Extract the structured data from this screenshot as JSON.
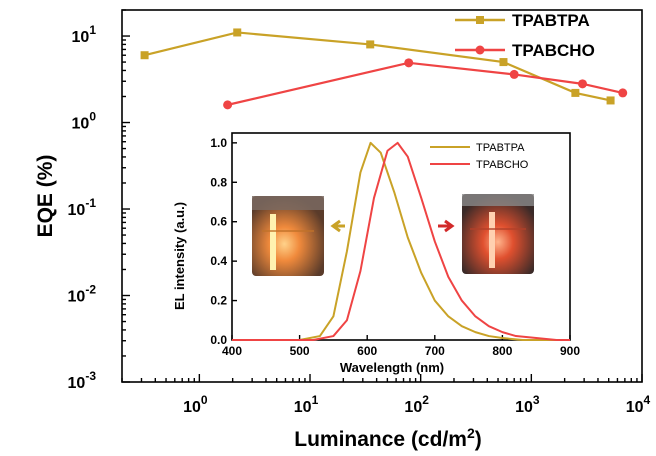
{
  "chart_data": [
    {
      "type": "line",
      "xlabel": "Luminance (cd/m",
      "xlabel_sup": "2",
      "xlabel_end": ")",
      "ylabel": "EQE (%)",
      "xscale": "log",
      "yscale": "log",
      "xlim": [
        0.2,
        10000
      ],
      "ylim": [
        0.001,
        20
      ],
      "xticks": [
        {
          "base": "10",
          "exp": "0",
          "value": 1
        },
        {
          "base": "10",
          "exp": "1",
          "value": 10
        },
        {
          "base": "10",
          "exp": "2",
          "value": 100
        },
        {
          "base": "10",
          "exp": "3",
          "value": 1000
        },
        {
          "base": "10",
          "exp": "4",
          "value": 10000
        }
      ],
      "yticks": [
        {
          "base": "10",
          "exp": "-3",
          "value": 0.001
        },
        {
          "base": "10",
          "exp": "-2",
          "value": 0.01
        },
        {
          "base": "10",
          "exp": "-1",
          "value": 0.1
        },
        {
          "base": "10",
          "exp": "0",
          "value": 1
        },
        {
          "base": "10",
          "exp": "1",
          "value": 10
        }
      ],
      "legend_position": "top-right",
      "series": [
        {
          "name": "TPABTPA",
          "color": "#c9a227",
          "marker": "square",
          "x": [
            0.32,
            2.2,
            35,
            560,
            2500,
            5200
          ],
          "y": [
            6.0,
            11.0,
            8.0,
            5.0,
            2.2,
            1.8
          ]
        },
        {
          "name": "TPABCHO",
          "color": "#ef4444",
          "marker": "circle",
          "x": [
            1.8,
            78,
            700,
            2900,
            6700
          ],
          "y": [
            1.6,
            4.9,
            3.6,
            2.8,
            2.2
          ]
        }
      ]
    },
    {
      "type": "line",
      "xlabel": "Wavelength (nm)",
      "ylabel": "EL  intensity (a.u.)",
      "xlim": [
        400,
        900
      ],
      "ylim": [
        0,
        1.05
      ],
      "xticks": [
        "400",
        "500",
        "600",
        "700",
        "800",
        "900"
      ],
      "yticks": [
        "0.0",
        "0.2",
        "0.4",
        "0.6",
        "0.8",
        "1.0"
      ],
      "legend_position": "top-right",
      "series": [
        {
          "name": "TPABTPA",
          "color": "#c9a227",
          "x": [
            400,
            500,
            530,
            550,
            570,
            590,
            605,
            620,
            640,
            660,
            680,
            700,
            720,
            740,
            760,
            780,
            800,
            830,
            860,
            900
          ],
          "y": [
            0.0,
            0.0,
            0.02,
            0.12,
            0.45,
            0.85,
            1.0,
            0.95,
            0.75,
            0.52,
            0.34,
            0.2,
            0.12,
            0.07,
            0.04,
            0.02,
            0.01,
            0.0,
            0.0,
            0.0
          ]
        },
        {
          "name": "TPABCHO",
          "color": "#ef4444",
          "x": [
            400,
            520,
            550,
            570,
            590,
            610,
            630,
            645,
            660,
            680,
            700,
            720,
            740,
            760,
            780,
            800,
            820,
            850,
            880,
            900
          ],
          "y": [
            0.0,
            0.0,
            0.02,
            0.1,
            0.35,
            0.72,
            0.96,
            1.0,
            0.93,
            0.72,
            0.5,
            0.32,
            0.2,
            0.12,
            0.07,
            0.04,
            0.02,
            0.01,
            0.0,
            0.0
          ]
        }
      ]
    }
  ]
}
